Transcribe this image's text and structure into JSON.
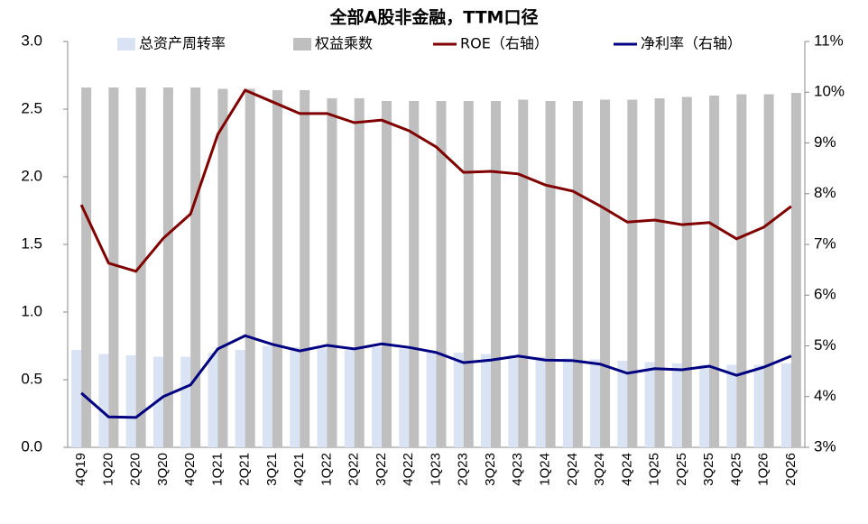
{
  "chart_data": {
    "type": "bar_line",
    "title": "全部A股非金融，TTM口径",
    "categories": [
      "4Q19",
      "1Q20",
      "2Q20",
      "3Q20",
      "4Q20",
      "1Q21",
      "2Q21",
      "3Q21",
      "4Q21",
      "1Q22",
      "2Q22",
      "3Q22",
      "4Q22",
      "1Q23",
      "2Q23",
      "3Q23",
      "4Q23",
      "1Q24",
      "2Q24",
      "3Q24",
      "4Q24",
      "1Q25",
      "2Q25",
      "3Q25",
      "4Q25",
      "1Q26",
      "2Q26"
    ],
    "series": [
      {
        "name": "总资产周转率",
        "type": "bar",
        "color": "#dae3f3",
        "values": [
          0.72,
          0.69,
          0.68,
          0.67,
          0.67,
          0.7,
          0.72,
          0.75,
          0.74,
          0.73,
          0.72,
          0.74,
          0.73,
          0.71,
          0.7,
          0.69,
          0.68,
          0.67,
          0.66,
          0.65,
          0.64,
          0.63,
          0.62,
          0.61,
          0.61,
          0.61,
          0.62
        ]
      },
      {
        "name": "权益乘数",
        "type": "bar",
        "color": "#bfbfbf",
        "values": [
          2.66,
          2.66,
          2.66,
          2.66,
          2.66,
          2.65,
          2.65,
          2.64,
          2.64,
          2.58,
          2.58,
          2.56,
          2.56,
          2.56,
          2.56,
          2.56,
          2.57,
          2.56,
          2.56,
          2.57,
          2.57,
          2.58,
          2.59,
          2.6,
          2.61,
          2.61,
          2.62
        ]
      },
      {
        "name": "ROE（右轴）",
        "type": "line",
        "axis": "y2",
        "color": "#800000",
        "values": [
          7.78,
          6.63,
          6.47,
          7.12,
          7.6,
          9.17,
          10.04,
          9.81,
          9.58,
          9.58,
          9.4,
          9.45,
          9.24,
          8.92,
          8.42,
          8.44,
          8.39,
          8.17,
          8.05,
          7.76,
          7.44,
          7.48,
          7.39,
          7.43,
          7.11,
          7.34,
          7.75
        ]
      },
      {
        "name": "净利率（右轴）",
        "type": "line",
        "axis": "y2",
        "color": "#000080",
        "values": [
          4.07,
          3.6,
          3.59,
          4.0,
          4.23,
          4.94,
          5.2,
          5.03,
          4.9,
          5.01,
          4.94,
          5.04,
          4.97,
          4.87,
          4.67,
          4.72,
          4.8,
          4.72,
          4.71,
          4.64,
          4.46,
          4.55,
          4.53,
          4.6,
          4.42,
          4.58,
          4.8
        ]
      }
    ],
    "ylim": [
      0,
      3
    ],
    "yticks": [
      {
        "value": 0,
        "label": "0.0"
      },
      0.5,
      {
        "value": 1,
        "label": "1.0"
      },
      1.5,
      {
        "value": 2,
        "label": "2.0"
      },
      2.5,
      {
        "value": 3,
        "label": "3.0"
      }
    ],
    "y2lim": [
      3,
      11
    ],
    "y2ticks": [
      {
        "value": 3,
        "label": "3%"
      },
      {
        "value": 4,
        "label": "4%"
      },
      {
        "value": 5,
        "label": "5%"
      },
      {
        "value": 6,
        "label": "6%"
      },
      {
        "value": 7,
        "label": "7%"
      },
      {
        "value": 8,
        "label": "8%"
      },
      {
        "value": 9,
        "label": "9%"
      },
      {
        "value": 10,
        "label": "10%"
      },
      {
        "value": 11,
        "label": "11%"
      }
    ]
  }
}
